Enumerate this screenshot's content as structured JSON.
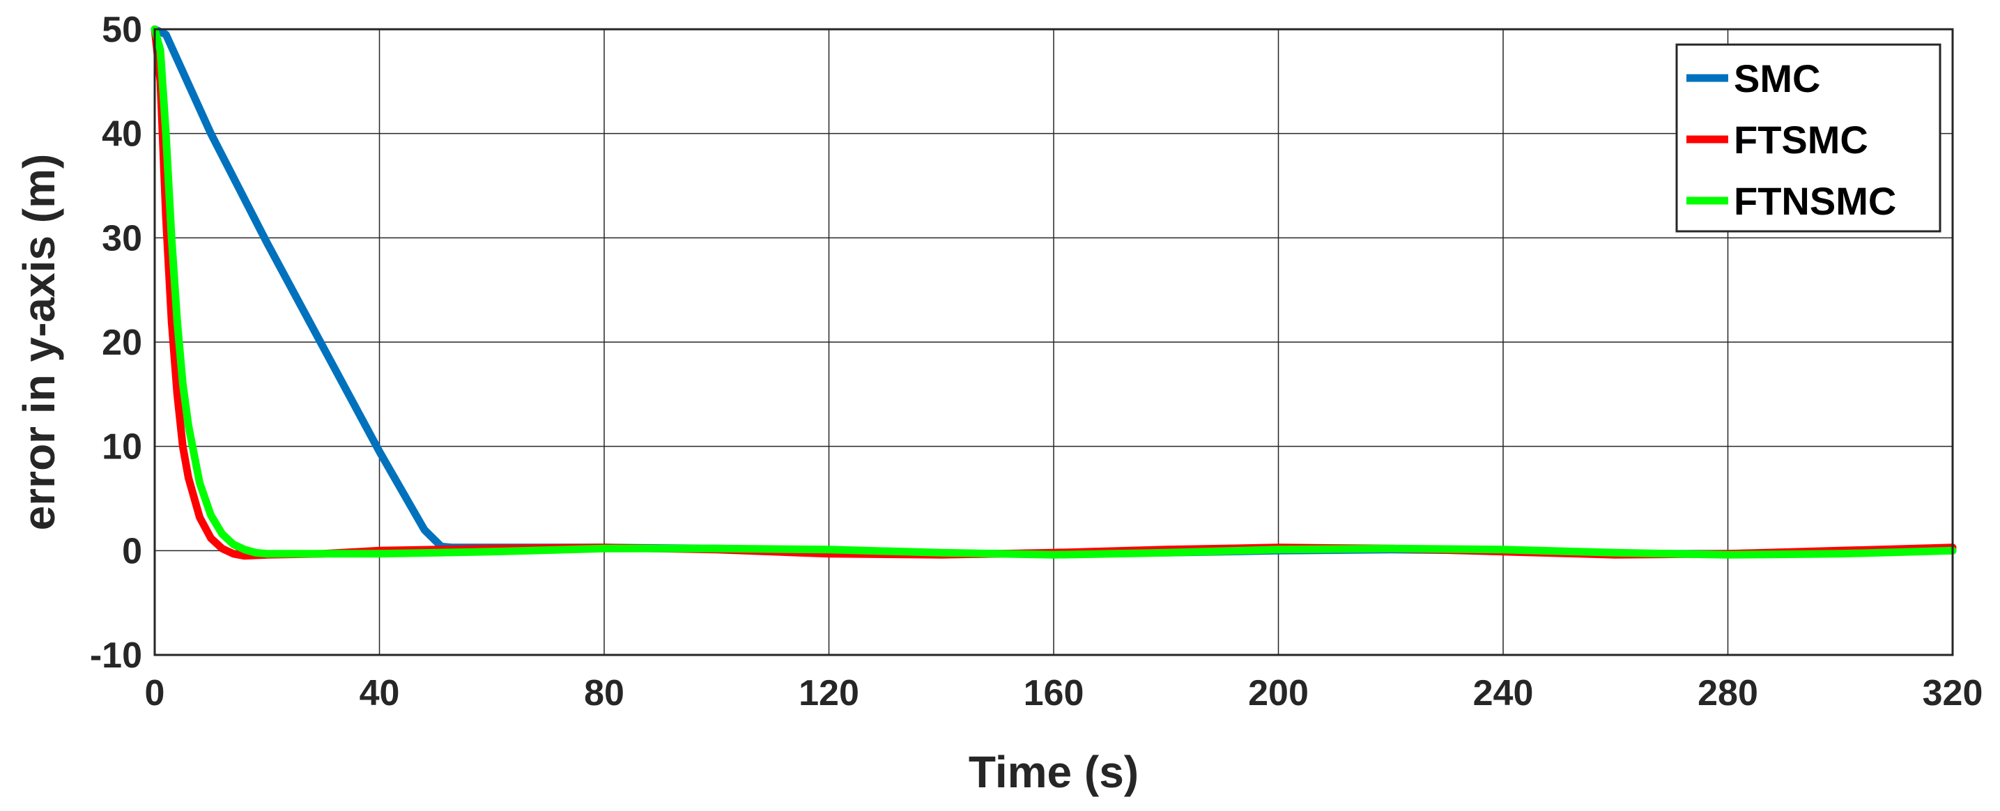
{
  "chart_data": {
    "type": "line",
    "title": "",
    "xlabel": "Time (s)",
    "ylabel": "error in y-axis (m)",
    "xlim": [
      0,
      320
    ],
    "ylim": [
      -10,
      50
    ],
    "xticks": [
      0,
      40,
      80,
      120,
      160,
      200,
      240,
      280,
      320
    ],
    "yticks": [
      -10,
      0,
      10,
      20,
      30,
      40,
      50
    ],
    "xtick_labels": [
      "0",
      "40",
      "80",
      "120",
      "160",
      "200",
      "240",
      "280",
      "320"
    ],
    "ytick_labels": [
      "-10",
      "0",
      "10",
      "20",
      "30",
      "40",
      "50"
    ],
    "grid": true,
    "legend_position": "top-right",
    "series": [
      {
        "name": "SMC",
        "color": "#0072BD",
        "x": [
          0,
          2,
          10,
          20,
          30,
          40,
          48,
          51,
          53,
          56,
          60,
          80,
          100,
          120,
          140,
          160,
          180,
          200,
          220,
          240,
          260,
          280,
          300,
          320
        ],
        "y": [
          50,
          49.5,
          40,
          29.5,
          19.5,
          9.5,
          2,
          0.4,
          0.3,
          0.3,
          0.3,
          0.3,
          0.2,
          0,
          -0.3,
          -0.3,
          -0.2,
          0,
          0.1,
          0,
          -0.3,
          -0.3,
          -0.1,
          0
        ]
      },
      {
        "name": "FTSMC",
        "color": "#FF0000",
        "x": [
          0,
          1,
          2,
          3,
          4,
          5,
          6,
          8,
          10,
          12,
          14,
          16,
          20,
          30,
          40,
          60,
          80,
          100,
          120,
          140,
          160,
          180,
          200,
          220,
          240,
          260,
          280,
          300,
          320
        ],
        "y": [
          50,
          45,
          32,
          22,
          15,
          10,
          7,
          3.2,
          1.2,
          0.2,
          -0.3,
          -0.5,
          -0.4,
          -0.3,
          0,
          0.2,
          0.3,
          0.1,
          -0.3,
          -0.4,
          -0.2,
          0.1,
          0.3,
          0.2,
          -0.1,
          -0.4,
          -0.3,
          0,
          0.3
        ]
      },
      {
        "name": "FTNSMC",
        "color": "#00FF00",
        "x": [
          0,
          1,
          2,
          3,
          4,
          5,
          6,
          8,
          10,
          12,
          14,
          16,
          18,
          20,
          25,
          30,
          40,
          60,
          80,
          100,
          120,
          140,
          160,
          180,
          200,
          220,
          240,
          260,
          280,
          300,
          320
        ],
        "y": [
          50,
          48,
          40,
          30,
          22,
          16,
          12,
          6.5,
          3.4,
          1.6,
          0.6,
          0.1,
          -0.2,
          -0.3,
          -0.3,
          -0.3,
          -0.3,
          -0.1,
          0.2,
          0.2,
          0.1,
          -0.2,
          -0.4,
          -0.2,
          0.1,
          0.2,
          0.1,
          -0.2,
          -0.4,
          -0.3,
          0
        ]
      }
    ]
  }
}
